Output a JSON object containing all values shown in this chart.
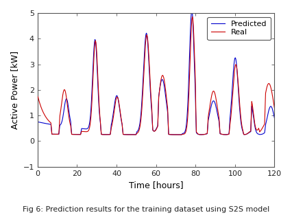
{
  "title": "",
  "xlabel": "Time [hours]",
  "ylabel": "Active Power [kW]",
  "caption": "Fig 6: Prediction results for the training dataset using S2S model",
  "xlim": [
    0,
    120
  ],
  "ylim": [
    -1,
    5
  ],
  "xticks": [
    0,
    20,
    40,
    60,
    80,
    100,
    120
  ],
  "yticks": [
    -1,
    0,
    1,
    2,
    3,
    4,
    5
  ],
  "predicted_color": "#0000cc",
  "real_color": "#cc0000",
  "legend_labels": [
    "Predicted",
    "Real"
  ],
  "background_color": "#ffffff",
  "plot_bg_color": "#ffffff",
  "spine_color": "#555555",
  "linewidth": 0.8,
  "figsize": [
    4.26,
    3.13
  ],
  "dpi": 100,
  "tick_labelsize": 8,
  "xlabel_fontsize": 9,
  "ylabel_fontsize": 9,
  "legend_fontsize": 8,
  "caption_fontsize": 8
}
